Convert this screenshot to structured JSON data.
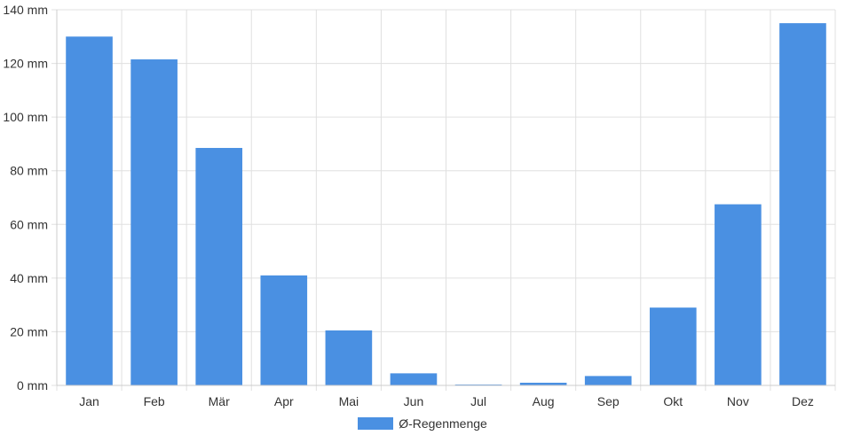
{
  "colors": {
    "bar": "#4a90e2",
    "grid": "#e0e0e0",
    "axis": "#cccccc",
    "text": "#333333"
  },
  "chart_data": {
    "type": "bar",
    "categories": [
      "Jan",
      "Feb",
      "Mär",
      "Apr",
      "Mai",
      "Jun",
      "Jul",
      "Aug",
      "Sep",
      "Okt",
      "Nov",
      "Dez"
    ],
    "series": [
      {
        "name": "Ø-Regenmenge",
        "values": [
          130,
          121.5,
          88.5,
          41,
          20.5,
          4.5,
          0.2,
          1,
          3.5,
          29,
          67.5,
          135
        ]
      }
    ],
    "ylim": [
      0,
      140
    ],
    "y_ticks": [
      0,
      20,
      40,
      60,
      80,
      100,
      120,
      140
    ],
    "y_tick_labels": [
      "0 mm",
      "20 mm",
      "40 mm",
      "60 mm",
      "80 mm",
      "100 mm",
      "120 mm",
      "140 mm"
    ],
    "grid": true,
    "legend": "bottom-center"
  }
}
